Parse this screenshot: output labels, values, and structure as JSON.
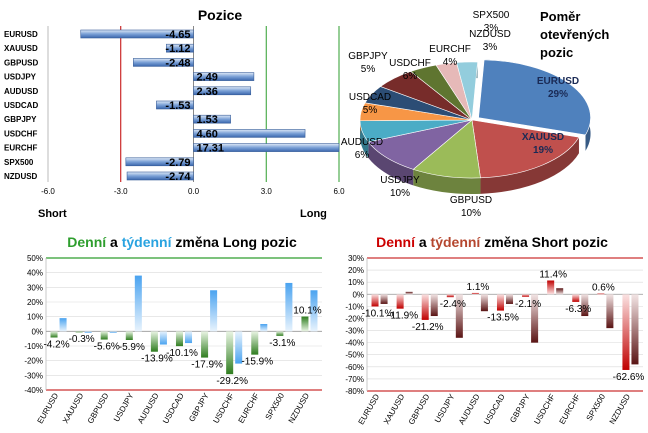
{
  "colors": {
    "green_title": "#2e9e2e",
    "blue_title": "#29a3e0",
    "red_title": "#cc0000",
    "brown_title": "#b5472f",
    "bar_blue": "#4a7bc4",
    "long_week": "#5aa9ee",
    "long_day": "#3b8a26",
    "short_day": "#c00000",
    "short_week": "#6a1a1a"
  },
  "chart_data": [
    {
      "type": "bar",
      "orientation": "horizontal",
      "title": "Pozice",
      "categories": [
        "EURUSD",
        "XAUUSD",
        "GBPUSD",
        "USDJPY",
        "AUDUSD",
        "USDCAD",
        "GBPJPY",
        "USDCHF",
        "EURCHF",
        "SPX500",
        "NZDUSD"
      ],
      "values": [
        -4.65,
        -1.12,
        -2.48,
        2.49,
        2.36,
        -1.53,
        1.53,
        4.6,
        17.31,
        -2.79,
        -2.74
      ],
      "value_labels": [
        "-4.65",
        "-1.12",
        "-2.48",
        "2.49",
        "2.36",
        "-1.53",
        "1.53",
        "4.60",
        "17.31",
        "-2.79",
        "-2.74"
      ],
      "xlim": [
        -6.0,
        6.0
      ],
      "x_ticks": [
        "-6.0",
        "-3.0",
        "0.0",
        "3.0",
        "6.0"
      ],
      "left_label": "Short",
      "right_label": "Long"
    },
    {
      "type": "pie",
      "title_lines": [
        "Poměr",
        "otevřených",
        "pozic"
      ],
      "slices": [
        {
          "label": "EURUSD",
          "pct": "29%",
          "value": 29,
          "color": "#4f81bd"
        },
        {
          "label": "XAUUSD",
          "pct": "19%",
          "value": 19,
          "color": "#c0504d"
        },
        {
          "label": "GBPUSD",
          "pct": "10%",
          "value": 10,
          "color": "#9bbb59"
        },
        {
          "label": "USDJPY",
          "pct": "10%",
          "value": 10,
          "color": "#8064a2"
        },
        {
          "label": "AUDUSD",
          "pct": "6%",
          "value": 6,
          "color": "#4bacc6"
        },
        {
          "label": "USDCAD",
          "pct": "5%",
          "value": 5,
          "color": "#f79646"
        },
        {
          "label": "GBPJPY",
          "pct": "5%",
          "value": 5,
          "color": "#2c4d75"
        },
        {
          "label": "USDCHF",
          "pct": "6%",
          "value": 6,
          "color": "#772c2a"
        },
        {
          "label": "EURCHF",
          "pct": "4%",
          "value": 4,
          "color": "#5f7530"
        },
        {
          "label": "SPX500",
          "pct": "3%",
          "value": 3,
          "color": "#e6b9b8"
        },
        {
          "label": "NZDUSD",
          "pct": "3%",
          "value": 3,
          "color": "#93cddd"
        }
      ]
    },
    {
      "type": "bar",
      "title_parts": [
        "Denní",
        " a ",
        "týdenní",
        " změna Long pozic"
      ],
      "categories": [
        "EURUSD",
        "XAUUSD",
        "GBPUSD",
        "USDJPY",
        "AUDUSD",
        "USDCAD",
        "GBPJPY",
        "USDCHF",
        "EURCHF",
        "SPX500",
        "NZDUSD"
      ],
      "series": [
        {
          "name": "Denní",
          "values": [
            -4.2,
            -0.3,
            -5.6,
            -5.9,
            -13.9,
            -10.1,
            -17.9,
            -29.2,
            -15.9,
            -3.1,
            10.1
          ]
        },
        {
          "name": "Týdenní",
          "values": [
            9,
            -1,
            -1,
            38,
            -9,
            -8,
            28,
            -22,
            5,
            33,
            28
          ]
        }
      ],
      "day_labels": [
        "-4.2%",
        "-0.3%",
        "-5.6%",
        "-5.9%",
        "-13.9%",
        "-10.1%",
        "-17.9%",
        "-29.2%",
        "-15.9%",
        "-3.1%",
        "10.1%"
      ],
      "ylim": [
        -40,
        50
      ],
      "y_ticks": [
        "50%",
        "40%",
        "30%",
        "20%",
        "10%",
        "0%",
        "-10%",
        "-20%",
        "-30%",
        "-40%"
      ]
    },
    {
      "type": "bar",
      "title_parts": [
        "Denní",
        " a ",
        "týdenní",
        " změna Short pozic"
      ],
      "categories": [
        "EURUSD",
        "XAUUSD",
        "GBPUSD",
        "USDJPY",
        "AUDUSD",
        "USDCAD",
        "GBPJPY",
        "USDCHF",
        "EURCHF",
        "SPX500",
        "NZDUSD"
      ],
      "series": [
        {
          "name": "Denní",
          "values": [
            -10.1,
            -11.9,
            -21.2,
            -2.4,
            1.1,
            -13.5,
            -2.1,
            11.4,
            -6.3,
            0.6,
            -62.6
          ]
        },
        {
          "name": "Týdenní",
          "values": [
            -8,
            2,
            -18,
            -36,
            -14,
            -8,
            -40,
            5,
            -18,
            -28,
            -58
          ]
        }
      ],
      "day_labels": [
        "-10.1%",
        "-11.9%",
        "-21.2%",
        "-2.4%",
        "1.1%",
        "-13.5%",
        "-2.1%",
        "11.4%",
        "-6.3%",
        "0.6%",
        "-62.6%"
      ],
      "ylim": [
        -80,
        30
      ],
      "y_ticks": [
        "30%",
        "20%",
        "10%",
        "0%",
        "-10%",
        "-20%",
        "-30%",
        "-40%",
        "-50%",
        "-60%",
        "-70%",
        "-80%"
      ]
    }
  ]
}
